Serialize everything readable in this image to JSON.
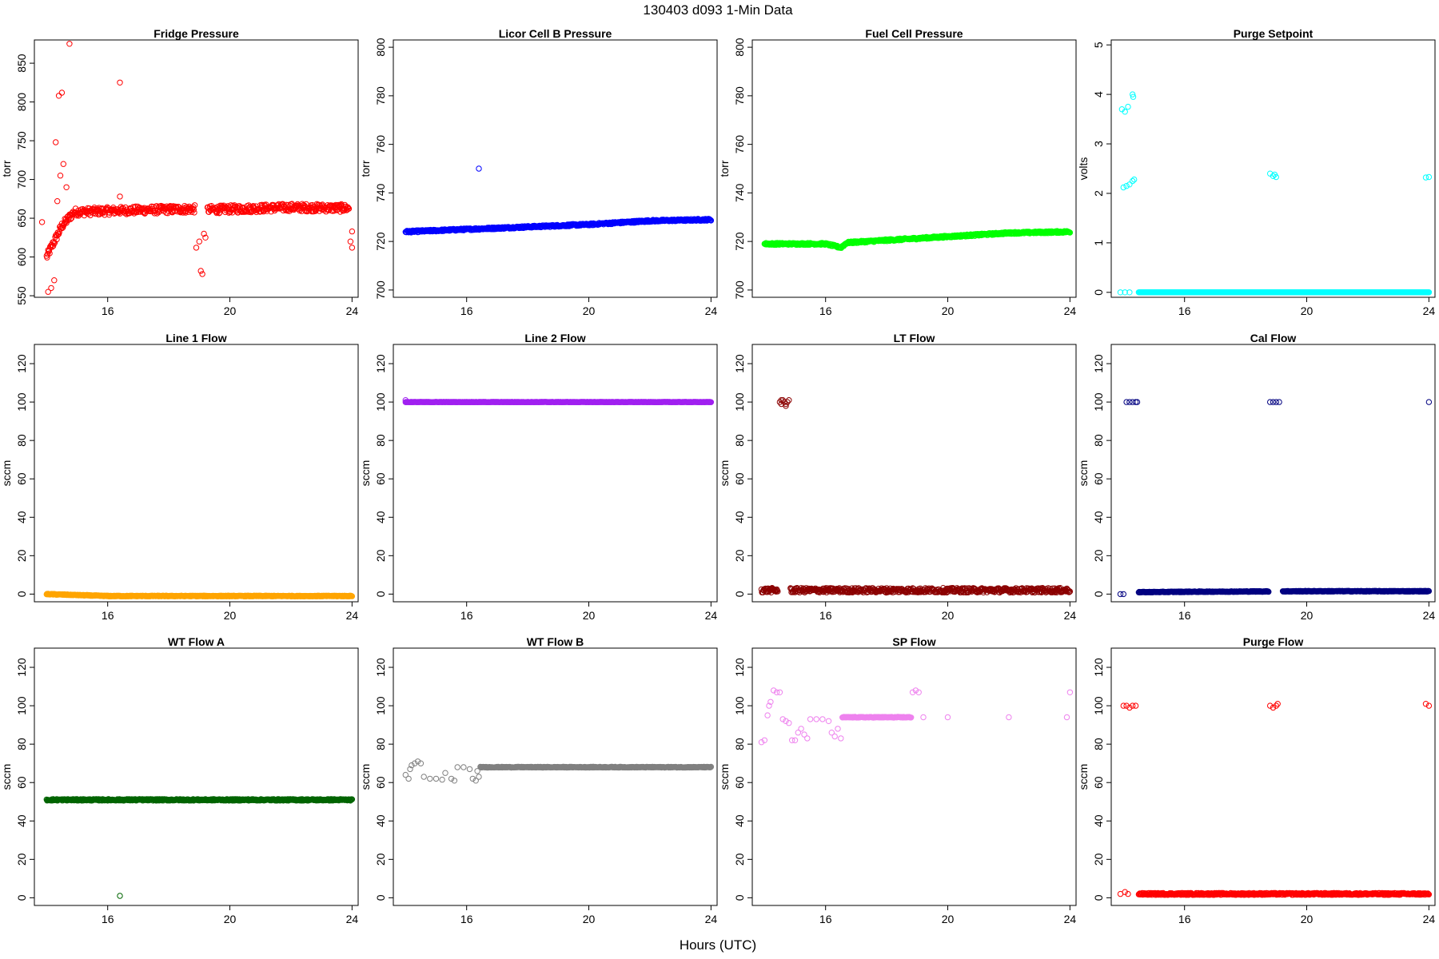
{
  "figure": {
    "title": "130403    d093    1-Min Data",
    "xlabel": "Hours (UTC)"
  },
  "chart_data": [
    {
      "type": "scatter",
      "title": "Fridge Pressure",
      "ylabel": "torr",
      "xlim": [
        13.6,
        24.2
      ],
      "ylim": [
        548,
        880
      ],
      "xticks": [
        16,
        20,
        24
      ],
      "yticks": [
        550,
        600,
        650,
        700,
        750,
        800,
        850
      ],
      "color": "#ff0000",
      "trend": [
        [
          14.0,
          600
        ],
        [
          14.5,
          640
        ],
        [
          14.9,
          658
        ],
        [
          16.5,
          660
        ],
        [
          18.8,
          662
        ],
        [
          19.3,
          661
        ],
        [
          22.0,
          664
        ],
        [
          23.9,
          663
        ]
      ],
      "trend_gaps": [
        [
          18.85,
          19.25
        ]
      ],
      "noise": 5,
      "outliers": [
        [
          13.85,
          645
        ],
        [
          14.05,
          555
        ],
        [
          14.15,
          560
        ],
        [
          14.25,
          570
        ],
        [
          14.3,
          748
        ],
        [
          14.4,
          808
        ],
        [
          14.5,
          812
        ],
        [
          14.45,
          705
        ],
        [
          14.55,
          720
        ],
        [
          14.65,
          690
        ],
        [
          14.75,
          875
        ],
        [
          14.35,
          672
        ],
        [
          16.4,
          825
        ],
        [
          16.4,
          678
        ],
        [
          18.9,
          612
        ],
        [
          19.0,
          620
        ],
        [
          19.05,
          582
        ],
        [
          19.1,
          578
        ],
        [
          19.15,
          630
        ],
        [
          19.2,
          625
        ],
        [
          24.0,
          633
        ],
        [
          23.95,
          620
        ],
        [
          24.0,
          612
        ]
      ]
    },
    {
      "type": "scatter",
      "title": "Licor Cell B Pressure",
      "ylabel": "torr",
      "xlim": [
        13.6,
        24.2
      ],
      "ylim": [
        697,
        803
      ],
      "xticks": [
        16,
        20,
        24
      ],
      "yticks": [
        700,
        720,
        740,
        760,
        780,
        800
      ],
      "color": "#0000ff",
      "trend": [
        [
          14.0,
          724
        ],
        [
          16.0,
          725
        ],
        [
          18.0,
          726
        ],
        [
          20.0,
          727
        ],
        [
          22.0,
          728.5
        ],
        [
          24.0,
          729
        ]
      ],
      "noise": 0.4,
      "outliers": [
        [
          16.4,
          750
        ]
      ]
    },
    {
      "type": "scatter",
      "title": "Fuel Cell Pressure",
      "ylabel": "torr",
      "xlim": [
        13.6,
        24.2
      ],
      "ylim": [
        697,
        803
      ],
      "xticks": [
        16,
        20,
        24
      ],
      "yticks": [
        700,
        720,
        740,
        760,
        780,
        800
      ],
      "color": "#00ff00",
      "trend": [
        [
          14.0,
          719
        ],
        [
          15.5,
          719
        ],
        [
          16.0,
          719
        ],
        [
          16.5,
          717.5
        ],
        [
          16.7,
          719.5
        ],
        [
          18.0,
          720.5
        ],
        [
          20.0,
          722
        ],
        [
          22.0,
          723.5
        ],
        [
          24.0,
          724
        ]
      ],
      "noise": 0.4,
      "outliers": []
    },
    {
      "type": "scatter",
      "title": "Purge Setpoint",
      "ylabel": "volts",
      "xlim": [
        13.6,
        24.2
      ],
      "ylim": [
        -0.1,
        5.1
      ],
      "xticks": [
        16,
        20,
        24
      ],
      "yticks": [
        0,
        1,
        2,
        3,
        4,
        5
      ],
      "color": "#00ffff",
      "trend": [
        [
          14.5,
          0
        ],
        [
          24.0,
          0
        ]
      ],
      "noise": 0,
      "outliers": [
        [
          13.9,
          0
        ],
        [
          14.05,
          0
        ],
        [
          14.2,
          0
        ],
        [
          13.95,
          3.7
        ],
        [
          14.05,
          3.65
        ],
        [
          14.15,
          3.75
        ],
        [
          14.3,
          4.0
        ],
        [
          14.32,
          3.95
        ],
        [
          14.0,
          2.12
        ],
        [
          14.1,
          2.15
        ],
        [
          14.2,
          2.18
        ],
        [
          14.3,
          2.25
        ],
        [
          14.35,
          2.28
        ],
        [
          18.8,
          2.4
        ],
        [
          18.9,
          2.35
        ],
        [
          18.95,
          2.38
        ],
        [
          19.0,
          2.33
        ],
        [
          23.9,
          2.32
        ],
        [
          24.0,
          2.33
        ],
        [
          24.0,
          0
        ]
      ]
    },
    {
      "type": "scatter",
      "title": "Line 1 Flow",
      "ylabel": "sccm",
      "xlim": [
        13.6,
        24.2
      ],
      "ylim": [
        -4,
        130
      ],
      "xticks": [
        16,
        20,
        24
      ],
      "yticks": [
        0,
        20,
        40,
        60,
        80,
        100,
        120
      ],
      "color": "#ffa500",
      "trend": [
        [
          14.0,
          0
        ],
        [
          15.0,
          -0.5
        ],
        [
          16.0,
          -1
        ],
        [
          24.0,
          -1
        ]
      ],
      "noise": 0.2,
      "outliers": []
    },
    {
      "type": "scatter",
      "title": "Line 2 Flow",
      "ylabel": "sccm",
      "xlim": [
        13.6,
        24.2
      ],
      "ylim": [
        -4,
        130
      ],
      "xticks": [
        16,
        20,
        24
      ],
      "yticks": [
        0,
        20,
        40,
        60,
        80,
        100,
        120
      ],
      "color": "#a020f0",
      "trend": [
        [
          14.0,
          100
        ],
        [
          24.0,
          100
        ]
      ],
      "noise": 0.1,
      "outliers": [
        [
          14.0,
          101
        ]
      ]
    },
    {
      "type": "scatter",
      "title": "LT Flow",
      "ylabel": "sccm",
      "xlim": [
        13.6,
        24.2
      ],
      "ylim": [
        -4,
        130
      ],
      "xticks": [
        16,
        20,
        24
      ],
      "yticks": [
        0,
        20,
        40,
        60,
        80,
        100,
        120
      ],
      "color": "#8b0000",
      "trend": [
        [
          13.9,
          2
        ],
        [
          24.0,
          2
        ]
      ],
      "trend_gaps": [
        [
          14.45,
          14.85
        ]
      ],
      "noise": 1.2,
      "outliers": [
        [
          14.5,
          100
        ],
        [
          14.55,
          99
        ],
        [
          14.6,
          101
        ],
        [
          14.65,
          100
        ],
        [
          14.7,
          98
        ],
        [
          14.75,
          100
        ],
        [
          14.8,
          101
        ],
        [
          14.55,
          101
        ],
        [
          14.7,
          99
        ]
      ]
    },
    {
      "type": "scatter",
      "title": "Cal Flow",
      "ylabel": "sccm",
      "xlim": [
        13.6,
        24.2
      ],
      "ylim": [
        -4,
        130
      ],
      "xticks": [
        16,
        20,
        24
      ],
      "yticks": [
        0,
        20,
        40,
        60,
        80,
        100,
        120
      ],
      "color": "#000080",
      "trend": [
        [
          14.5,
          1
        ],
        [
          16.0,
          1.2
        ],
        [
          20.0,
          1.5
        ],
        [
          24.0,
          1.5
        ]
      ],
      "trend_gaps": [
        [
          18.75,
          19.2
        ]
      ],
      "noise": 0.2,
      "outliers": [
        [
          13.9,
          0
        ],
        [
          14.0,
          0
        ],
        [
          14.1,
          100
        ],
        [
          14.2,
          100
        ],
        [
          14.3,
          100
        ],
        [
          14.4,
          100
        ],
        [
          14.45,
          100
        ],
        [
          18.8,
          100
        ],
        [
          18.9,
          100
        ],
        [
          19.0,
          100
        ],
        [
          19.1,
          100
        ],
        [
          24.0,
          100
        ]
      ]
    },
    {
      "type": "scatter",
      "title": "WT Flow A",
      "ylabel": "sccm",
      "xlim": [
        13.6,
        24.2
      ],
      "ylim": [
        -4,
        130
      ],
      "xticks": [
        16,
        20,
        24
      ],
      "yticks": [
        0,
        20,
        40,
        60,
        80,
        100,
        120
      ],
      "color": "#006400",
      "trend": [
        [
          14.0,
          51
        ],
        [
          24.0,
          51
        ]
      ],
      "noise": 0.4,
      "outliers": [
        [
          16.4,
          1
        ]
      ]
    },
    {
      "type": "scatter",
      "title": "WT Flow B",
      "ylabel": "sccm",
      "xlim": [
        13.6,
        24.2
      ],
      "ylim": [
        -4,
        130
      ],
      "xticks": [
        16,
        20,
        24
      ],
      "yticks": [
        0,
        20,
        40,
        60,
        80,
        100,
        120
      ],
      "color": "#808080",
      "trend": [
        [
          16.45,
          68
        ],
        [
          24.0,
          68
        ]
      ],
      "noise": 0.2,
      "outliers": [
        [
          14.0,
          64
        ],
        [
          14.1,
          62
        ],
        [
          14.15,
          67
        ],
        [
          14.2,
          69
        ],
        [
          14.3,
          70
        ],
        [
          14.4,
          71
        ],
        [
          14.5,
          70
        ],
        [
          14.6,
          63
        ],
        [
          14.8,
          62
        ],
        [
          15.0,
          62
        ],
        [
          15.2,
          61.5
        ],
        [
          15.3,
          65
        ],
        [
          15.5,
          62
        ],
        [
          15.6,
          61
        ],
        [
          15.7,
          68
        ],
        [
          15.9,
          68
        ],
        [
          16.1,
          67
        ],
        [
          16.2,
          62
        ],
        [
          16.3,
          61
        ],
        [
          16.35,
          66
        ],
        [
          16.4,
          63
        ]
      ]
    },
    {
      "type": "scatter",
      "title": "SP Flow",
      "ylabel": "sccm",
      "xlim": [
        13.6,
        24.2
      ],
      "ylim": [
        -4,
        130
      ],
      "xticks": [
        16,
        20,
        24
      ],
      "yticks": [
        0,
        20,
        40,
        60,
        80,
        100,
        120
      ],
      "color": "#ee82ee",
      "trend": [
        [
          16.55,
          94
        ],
        [
          18.8,
          94
        ]
      ],
      "noise": 0.2,
      "outliers": [
        [
          13.9,
          81
        ],
        [
          14.0,
          82
        ],
        [
          14.1,
          95
        ],
        [
          14.15,
          100
        ],
        [
          14.2,
          102
        ],
        [
          14.3,
          108
        ],
        [
          14.4,
          107
        ],
        [
          14.5,
          107
        ],
        [
          14.6,
          93
        ],
        [
          14.7,
          92
        ],
        [
          14.8,
          91
        ],
        [
          14.9,
          82
        ],
        [
          15.0,
          82
        ],
        [
          15.1,
          86
        ],
        [
          15.2,
          88
        ],
        [
          15.3,
          85
        ],
        [
          15.4,
          83
        ],
        [
          15.5,
          93
        ],
        [
          15.7,
          93
        ],
        [
          15.9,
          93
        ],
        [
          16.1,
          92
        ],
        [
          16.2,
          86
        ],
        [
          16.3,
          84
        ],
        [
          16.4,
          88
        ],
        [
          16.5,
          83
        ],
        [
          18.85,
          107
        ],
        [
          18.95,
          108
        ],
        [
          19.05,
          107
        ],
        [
          19.2,
          94
        ],
        [
          20.0,
          94
        ],
        [
          22.0,
          94
        ],
        [
          23.9,
          94
        ],
        [
          24.0,
          107
        ]
      ]
    },
    {
      "type": "scatter",
      "title": "Purge Flow",
      "ylabel": "sccm",
      "xlim": [
        13.6,
        24.2
      ],
      "ylim": [
        -4,
        130
      ],
      "xticks": [
        16,
        20,
        24
      ],
      "yticks": [
        0,
        20,
        40,
        60,
        80,
        100,
        120
      ],
      "color": "#ff0000",
      "trend": [
        [
          14.5,
          2
        ],
        [
          24.0,
          2
        ]
      ],
      "noise": 0.5,
      "outliers": [
        [
          13.9,
          2
        ],
        [
          14.05,
          3
        ],
        [
          14.15,
          2
        ],
        [
          14.0,
          100
        ],
        [
          14.1,
          100
        ],
        [
          14.2,
          99
        ],
        [
          14.3,
          100
        ],
        [
          14.4,
          100
        ],
        [
          18.8,
          100
        ],
        [
          18.9,
          99
        ],
        [
          19.0,
          100
        ],
        [
          19.05,
          101
        ],
        [
          23.9,
          101
        ],
        [
          24.0,
          100
        ]
      ]
    }
  ]
}
